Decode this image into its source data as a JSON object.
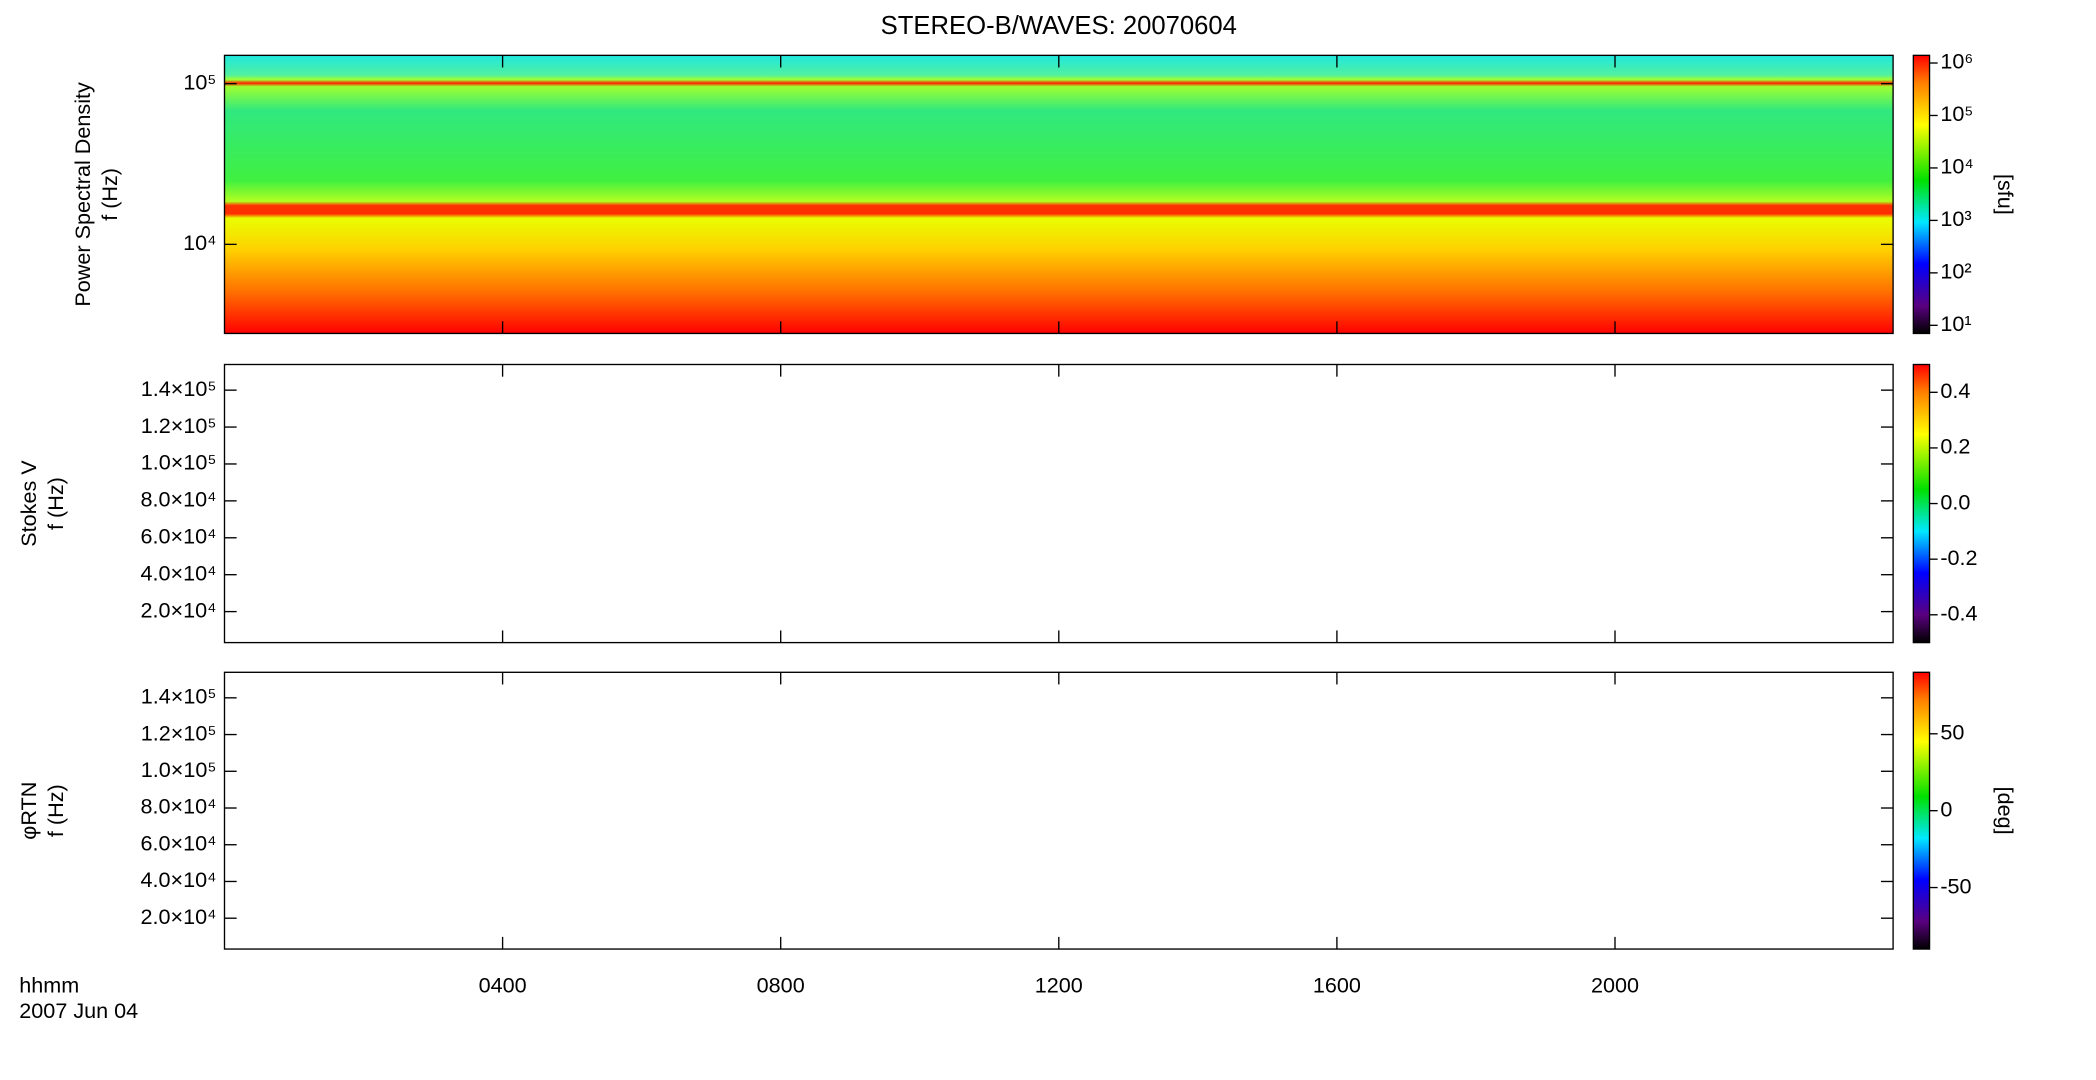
{
  "chart_data": [
    {
      "type": "heatmap",
      "title": "STEREO-B/WAVES: 20070604",
      "ylabel": [
        "Power Spectral Density",
        "f (Hz)"
      ],
      "yscale": "log",
      "ylim": [
        2790,
        150000
      ],
      "yticks": [
        {
          "value": 10000,
          "label": "10⁴"
        },
        {
          "value": 100000,
          "label": "10⁵"
        }
      ],
      "xlim": [
        0,
        24
      ],
      "xticks": [
        {
          "value": 4,
          "label": "0400"
        },
        {
          "value": 8,
          "label": "0800"
        },
        {
          "value": 12,
          "label": "1200"
        },
        {
          "value": 16,
          "label": "1600"
        },
        {
          "value": 20,
          "label": "2000"
        }
      ],
      "xlabel": [
        "hhmm",
        "2007 Jun 04"
      ],
      "colorbar": {
        "label": "[sfu]",
        "scale": "log",
        "lim": [
          7,
          1400000
        ],
        "ticks": [
          {
            "value": 10,
            "label": "10¹"
          },
          {
            "value": 100,
            "label": "10²"
          },
          {
            "value": 1000,
            "label": "10³"
          },
          {
            "value": 10000,
            "label": "10⁴"
          },
          {
            "value": 100000,
            "label": "10⁵"
          },
          {
            "value": 1000000,
            "label": "10⁶"
          }
        ]
      }
    },
    {
      "type": "heatmap",
      "ylabel": [
        "Stokes V",
        "f (Hz)"
      ],
      "yscale": "linear",
      "ylim": [
        3200,
        153900
      ],
      "yticks": [
        {
          "value": 20000,
          "label": "2.0×10⁴"
        },
        {
          "value": 40000,
          "label": "4.0×10⁴"
        },
        {
          "value": 60000,
          "label": "6.0×10⁴"
        },
        {
          "value": 80000,
          "label": "8.0×10⁴"
        },
        {
          "value": 100000,
          "label": "1.0×10⁵"
        },
        {
          "value": 120000,
          "label": "1.2×10⁵"
        },
        {
          "value": 140000,
          "label": "1.4×10⁵"
        }
      ],
      "colorbar": {
        "scale": "linear",
        "lim": [
          -0.5,
          0.5
        ],
        "ticks": [
          -0.4,
          -0.2,
          {
            "value": 0,
            "label": "0.0"
          },
          0.2,
          0.4
        ]
      }
    },
    {
      "type": "heatmap",
      "ylabel": [
        "φRTN",
        "f (Hz)"
      ],
      "yscale": "linear",
      "ylim": [
        3200,
        153900
      ],
      "yticks": [
        {
          "value": 20000,
          "label": "2.0×10⁴"
        },
        {
          "value": 40000,
          "label": "4.0×10⁴"
        },
        {
          "value": 60000,
          "label": "6.0×10⁴"
        },
        {
          "value": 80000,
          "label": "8.0×10⁴"
        },
        {
          "value": 100000,
          "label": "1.0×10⁵"
        },
        {
          "value": 120000,
          "label": "1.2×10⁵"
        },
        {
          "value": 140000,
          "label": "1.4×10⁵"
        }
      ],
      "colorbar": {
        "label": "[deg]",
        "scale": "linear",
        "lim": [
          -90,
          90
        ],
        "ticks": [
          -50,
          0,
          50
        ]
      }
    }
  ]
}
